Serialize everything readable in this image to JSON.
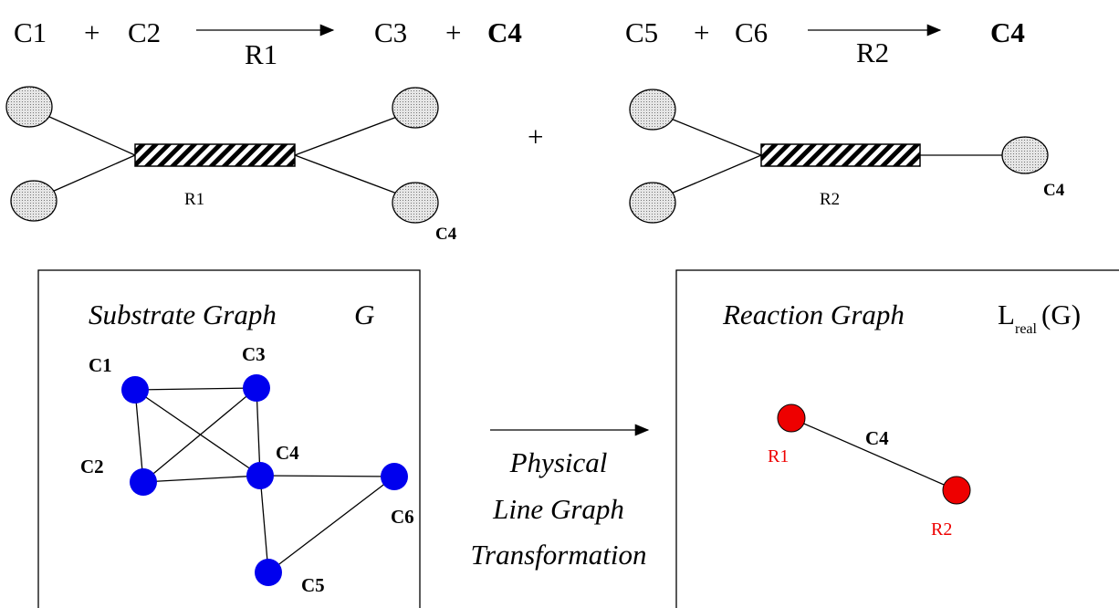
{
  "reactions": [
    {
      "left": [
        "C1",
        "+",
        "C2"
      ],
      "arrow_label": "R1",
      "right": [
        "C3",
        "+",
        "C4"
      ]
    },
    {
      "left": [
        "C5",
        "+",
        "C6"
      ],
      "arrow_label": "R2",
      "right": [
        "C4"
      ]
    }
  ],
  "hypergraphs": [
    {
      "reaction_label": "R1",
      "product_label": "C4"
    },
    {
      "reaction_label": "R2",
      "product_label": "C4"
    }
  ],
  "hypergraph_join": "+",
  "substrate_graph": {
    "title": "Substrate Graph",
    "symbol": "G",
    "nodes": [
      {
        "label": "C1"
      },
      {
        "label": "C2"
      },
      {
        "label": "C3"
      },
      {
        "label": "C4"
      },
      {
        "label": "C5"
      },
      {
        "label": "C6"
      }
    ]
  },
  "transformation": {
    "lines": [
      "Physical",
      "Line Graph",
      "Transformation"
    ]
  },
  "reaction_graph": {
    "title": "Reaction Graph",
    "symbol": "L",
    "subscript": "real",
    "argument": "(G)",
    "nodes": [
      {
        "label": "R1"
      },
      {
        "label": "R2"
      }
    ],
    "edge_label": "C4"
  }
}
